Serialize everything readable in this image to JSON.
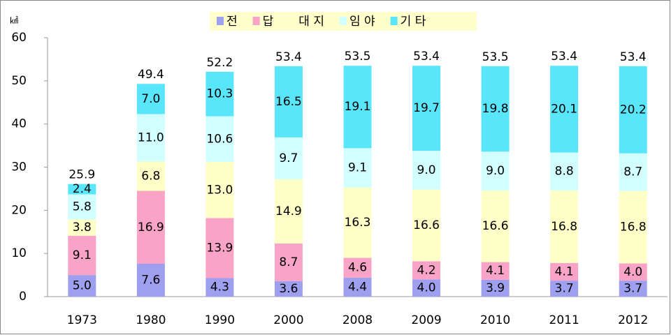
{
  "chart_data": {
    "type": "stacked_bar",
    "unit": "㎢",
    "categories": [
      "1973",
      "1980",
      "1990",
      "2000",
      "2008",
      "2009",
      "2010",
      "2011",
      "2012"
    ],
    "series": [
      {
        "name": "전",
        "color": "#9f9fef",
        "values": [
          5.0,
          7.6,
          4.3,
          3.6,
          4.4,
          4.0,
          3.9,
          3.7,
          3.7
        ],
        "value_labels": [
          "5.0",
          "7.6",
          "4.3",
          "3.6",
          "4.4",
          "4.0",
          "3.9",
          "3.7",
          "3.7"
        ]
      },
      {
        "name": "답",
        "color": "#f9a3c7",
        "values": [
          9.1,
          16.9,
          13.9,
          8.7,
          4.6,
          4.2,
          4.1,
          4.1,
          4.0
        ],
        "value_labels": [
          "9.1",
          "16.9",
          "13.9",
          "8.7",
          "4.6",
          "4.2",
          "4.1",
          "4.1",
          "4.0"
        ]
      },
      {
        "name": "대 지",
        "color": "#ffffc8",
        "values": [
          3.8,
          6.8,
          13.0,
          14.9,
          16.3,
          16.6,
          16.6,
          16.8,
          16.8
        ],
        "value_labels": [
          "3.8",
          "6.8",
          "13.0",
          "14.9",
          "16.3",
          "16.6",
          "16.6",
          "16.8",
          "16.8"
        ]
      },
      {
        "name": "임 야",
        "color": "#d2ffff",
        "values": [
          5.8,
          11.0,
          10.6,
          9.7,
          9.1,
          9.0,
          9.0,
          8.8,
          8.7
        ],
        "value_labels": [
          "5.8",
          "11.0",
          "10.6",
          "9.7",
          "9.1",
          "9.0",
          "9.0",
          "8.8",
          "8.7"
        ]
      },
      {
        "name": "기 타",
        "color": "#5ae6fa",
        "values": [
          2.4,
          7.0,
          10.3,
          16.5,
          19.1,
          19.7,
          19.8,
          20.1,
          20.2
        ],
        "value_labels": [
          "2.4",
          "7.0",
          "10.3",
          "16.5",
          "19.1",
          "19.7",
          "19.8",
          "20.1",
          "20.2"
        ]
      }
    ],
    "totals": [
      25.9,
      49.4,
      52.2,
      53.4,
      53.5,
      53.4,
      53.5,
      53.4,
      53.4
    ],
    "ylim": [
      0,
      60
    ],
    "yticks": [
      0,
      10,
      20,
      30,
      40,
      50,
      60
    ],
    "grid": false,
    "legend": "top"
  }
}
